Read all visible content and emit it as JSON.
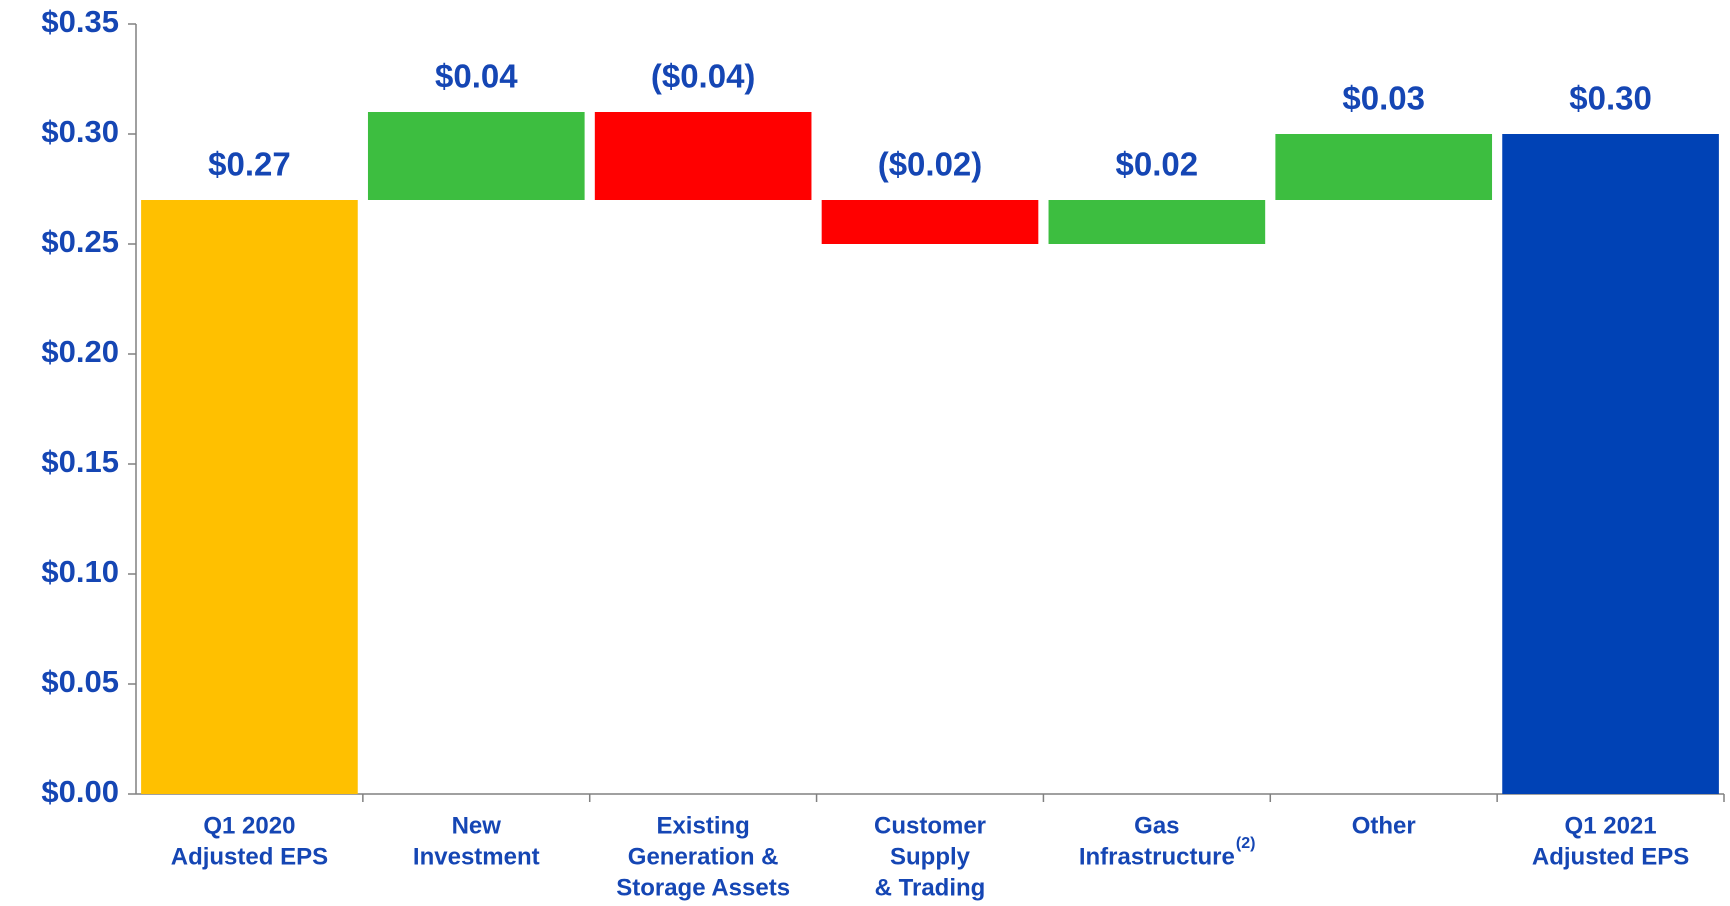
{
  "chart_data": {
    "type": "waterfall",
    "categories": [
      [
        "Q1 2020",
        "Adjusted EPS"
      ],
      [
        "New",
        "Investment"
      ],
      [
        "Existing",
        "Generation &",
        "Storage Assets"
      ],
      [
        "Customer",
        "Supply",
        "& Trading"
      ],
      [
        "Gas",
        "Infrastructure"
      ],
      [
        "Other"
      ],
      [
        "Q1 2021",
        "Adjusted EPS"
      ]
    ],
    "category_superscripts": {
      "4": "(2)"
    },
    "values": [
      0.27,
      0.04,
      -0.04,
      -0.02,
      0.02,
      0.03,
      0.3
    ],
    "value_labels": [
      "$0.27",
      "$0.04",
      "($0.04)",
      "($0.02)",
      "$0.02",
      "$0.03",
      "$0.30"
    ],
    "colors": [
      "#FFC000",
      "#3DBE40",
      "#FF0000",
      "#FF0000",
      "#3DBE40",
      "#3DBE40",
      "#0042B5"
    ],
    "ylim": [
      0,
      0.35
    ],
    "yticks": [
      {
        "value": 0,
        "label": "$0.00"
      },
      {
        "value": 0.05,
        "label": "$0.05"
      },
      {
        "value": 0.1,
        "label": "$0.10"
      },
      {
        "value": 0.15,
        "label": "$0.15"
      },
      {
        "value": 0.2,
        "label": "$0.20"
      },
      {
        "value": 0.25,
        "label": "$0.25"
      },
      {
        "value": 0.3,
        "label": "$0.30"
      },
      {
        "value": 0.35,
        "label": "$0.35"
      }
    ],
    "grid": false
  }
}
